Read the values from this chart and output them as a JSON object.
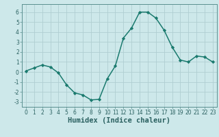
{
  "x": [
    0,
    1,
    2,
    3,
    4,
    5,
    6,
    7,
    8,
    9,
    10,
    11,
    12,
    13,
    14,
    15,
    16,
    17,
    18,
    19,
    20,
    21,
    22,
    23
  ],
  "y": [
    0.1,
    0.4,
    0.7,
    0.5,
    -0.1,
    -1.3,
    -2.1,
    -2.3,
    -2.8,
    -2.75,
    -0.7,
    0.6,
    3.4,
    4.4,
    6.0,
    6.0,
    5.4,
    4.2,
    2.5,
    1.2,
    1.0,
    1.6,
    1.5,
    1.0
  ],
  "line_color": "#1a7a6e",
  "marker": "D",
  "marker_size": 2.2,
  "background_color": "#cde8ea",
  "grid_color": "#b0ced2",
  "xlabel": "Humidex (Indice chaleur)",
  "ylim": [
    -3.5,
    6.8
  ],
  "xlim": [
    -0.5,
    23.5
  ],
  "yticks": [
    -3,
    -2,
    -1,
    0,
    1,
    2,
    3,
    4,
    5,
    6
  ],
  "xticks": [
    0,
    1,
    2,
    3,
    4,
    5,
    6,
    7,
    8,
    9,
    10,
    11,
    12,
    13,
    14,
    15,
    16,
    17,
    18,
    19,
    20,
    21,
    22,
    23
  ],
  "tick_fontsize": 5.5,
  "xlabel_fontsize": 7.5,
  "tick_color": "#2a6060",
  "spine_color": "#5a9090",
  "line_width": 1.1
}
